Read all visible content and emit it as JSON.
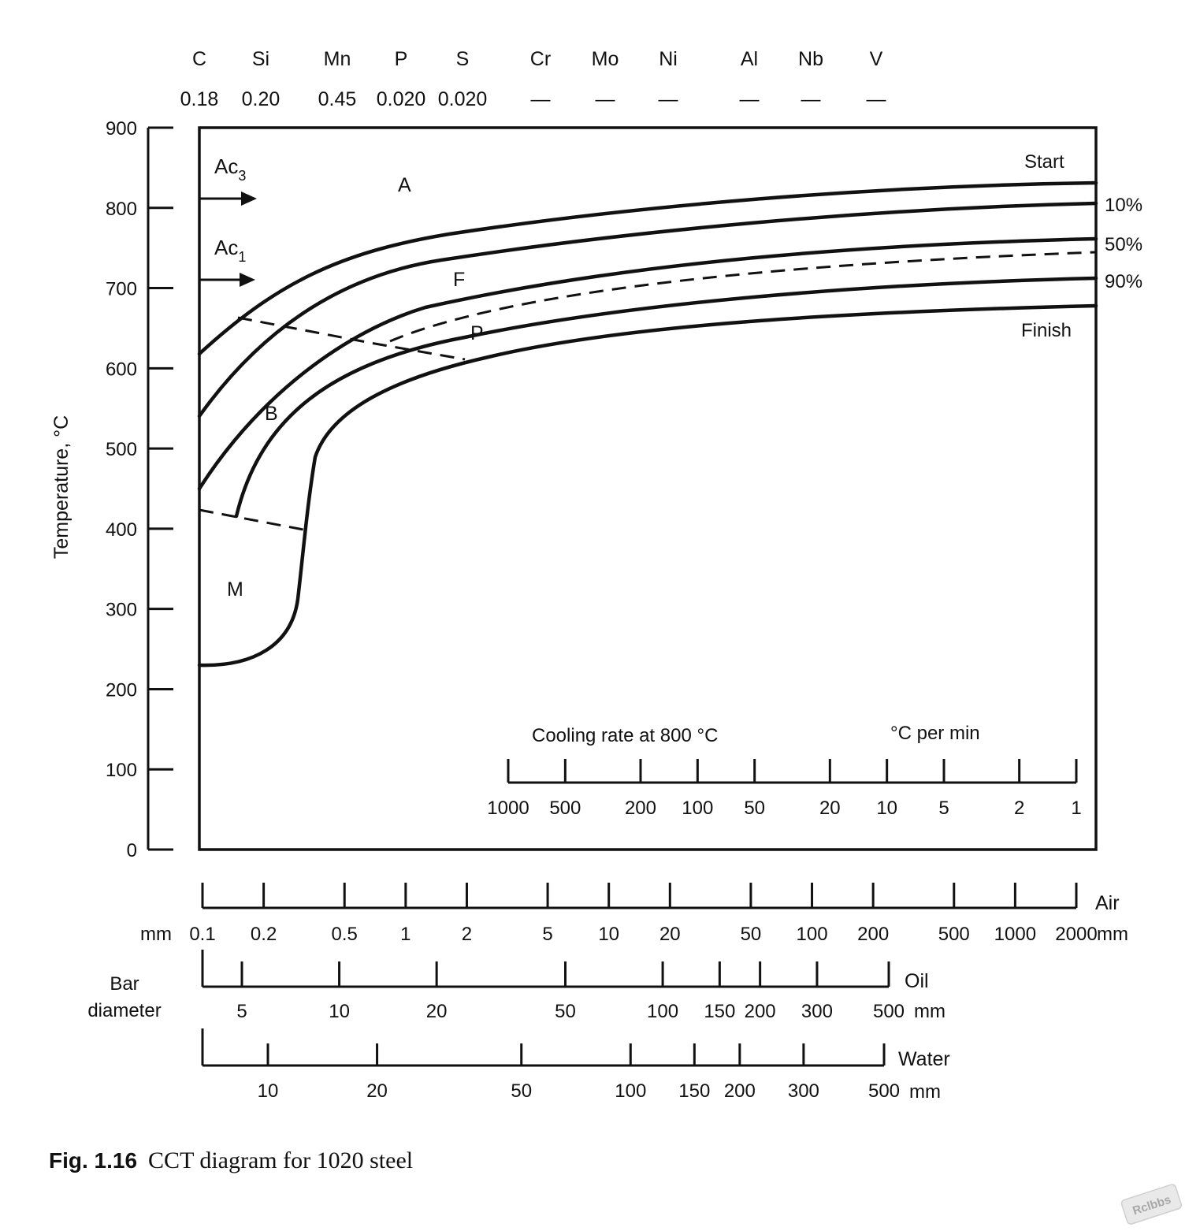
{
  "composition": {
    "elements": [
      "C",
      "Si",
      "Mn",
      "P",
      "S",
      "Cr",
      "Mo",
      "Ni",
      "Al",
      "Nb",
      "V"
    ],
    "values": [
      "0.18",
      "0.20",
      "0.45",
      "0.020",
      "0.020",
      "—",
      "—",
      "—",
      "—",
      "—",
      "—"
    ]
  },
  "chart_data": {
    "type": "line",
    "title": "",
    "caption_label": "Fig. 1.16",
    "caption_text": "CCT diagram for 1020 steel",
    "ylabel": "Temperature, °C",
    "ylim": [
      0,
      900
    ],
    "yticks": [
      0,
      100,
      200,
      300,
      400,
      500,
      600,
      700,
      800,
      900
    ],
    "grid": false,
    "critical_temps": [
      {
        "label": "Ac",
        "sub": "3",
        "temp": 820
      },
      {
        "label": "Ac",
        "sub": "1",
        "temp": 720
      }
    ],
    "phase_labels": [
      "A",
      "F",
      "P",
      "B",
      "M"
    ],
    "curve_labels": [
      "Start",
      "10%",
      "50%",
      "90%",
      "Finish"
    ],
    "cooling_rate_scale": {
      "label": "Cooling rate at 800 °C",
      "unit": "°C per min",
      "ticks": [
        "1000",
        "500",
        "200",
        "100",
        "50",
        "20",
        "10",
        "5",
        "2",
        "1"
      ]
    },
    "bar_diameter": {
      "label_line1": "Bar",
      "label_line2": "diameter",
      "air": {
        "name": "Air",
        "unit": "mm",
        "unit_left": "mm",
        "ticks": [
          "0.1",
          "0.2",
          "0.5",
          "1",
          "2",
          "5",
          "10",
          "20",
          "50",
          "100",
          "200",
          "500",
          "1000",
          "2000"
        ]
      },
      "oil": {
        "name": "Oil",
        "unit": "mm",
        "ticks": [
          "5",
          "10",
          "20",
          "50",
          "100",
          "150",
          "200",
          "300",
          "500"
        ]
      },
      "water": {
        "name": "Water",
        "unit": "mm",
        "ticks": [
          "10",
          "20",
          "50",
          "100",
          "150",
          "200",
          "300",
          "500"
        ]
      }
    }
  },
  "watermark": "Rclbbs"
}
